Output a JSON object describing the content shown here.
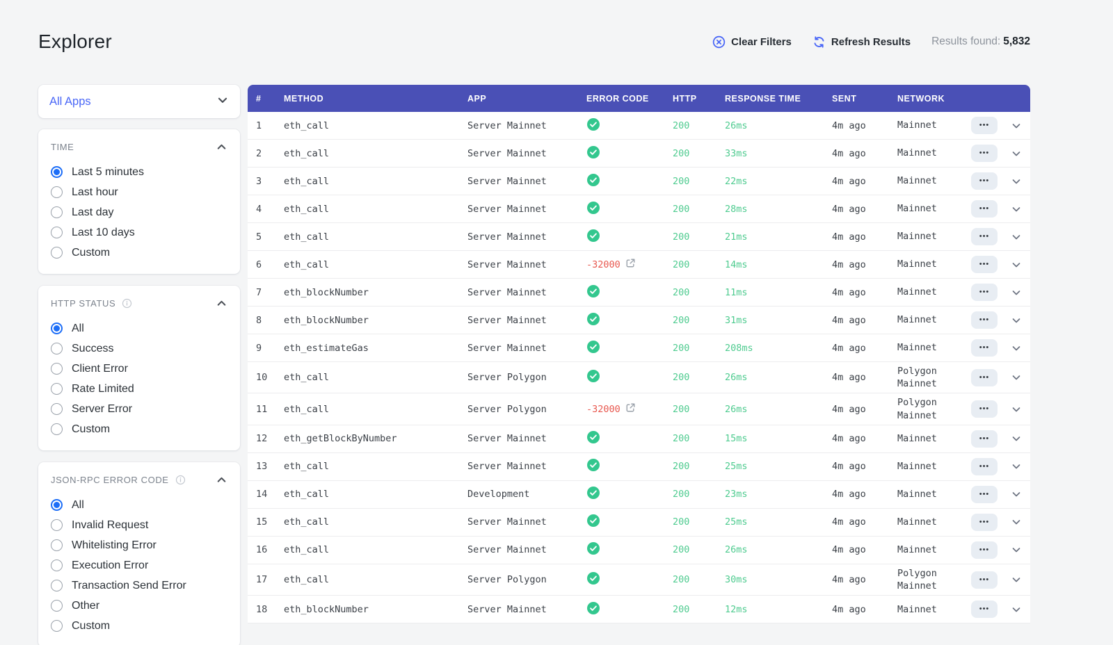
{
  "page_title": "Explorer",
  "toolbar": {
    "clear_filters": "Clear Filters",
    "refresh_results": "Refresh Results",
    "results_found_label": "Results found:",
    "results_found_value": "5,832"
  },
  "sidebar": {
    "app_filter": {
      "value": "All Apps"
    },
    "panels": [
      {
        "id": "time",
        "title": "TIME",
        "info": false,
        "options": [
          "Last 5 minutes",
          "Last hour",
          "Last day",
          "Last 10 days",
          "Custom"
        ],
        "selected": "Last 5 minutes"
      },
      {
        "id": "http-status",
        "title": "HTTP STATUS",
        "info": true,
        "options": [
          "All",
          "Success",
          "Client Error",
          "Rate Limited",
          "Server Error",
          "Custom"
        ],
        "selected": "All"
      },
      {
        "id": "json-rpc-error-code",
        "title": "JSON-RPC ERROR CODE",
        "info": true,
        "options": [
          "All",
          "Invalid Request",
          "Whitelisting Error",
          "Execution Error",
          "Transaction Send Error",
          "Other",
          "Custom"
        ],
        "selected": "All"
      }
    ]
  },
  "table": {
    "columns": [
      "#",
      "METHOD",
      "APP",
      "ERROR CODE",
      "HTTP",
      "RESPONSE TIME",
      "SENT",
      "NETWORK"
    ],
    "rows": [
      {
        "num": "1",
        "method": "eth_call",
        "app": "Server Mainnet",
        "error_code": "success",
        "http": "200",
        "response_time": "26ms",
        "sent": "4m ago",
        "network": "Mainnet"
      },
      {
        "num": "2",
        "method": "eth_call",
        "app": "Server Mainnet",
        "error_code": "success",
        "http": "200",
        "response_time": "33ms",
        "sent": "4m ago",
        "network": "Mainnet"
      },
      {
        "num": "3",
        "method": "eth_call",
        "app": "Server Mainnet",
        "error_code": "success",
        "http": "200",
        "response_time": "22ms",
        "sent": "4m ago",
        "network": "Mainnet"
      },
      {
        "num": "4",
        "method": "eth_call",
        "app": "Server Mainnet",
        "error_code": "success",
        "http": "200",
        "response_time": "28ms",
        "sent": "4m ago",
        "network": "Mainnet"
      },
      {
        "num": "5",
        "method": "eth_call",
        "app": "Server Mainnet",
        "error_code": "success",
        "http": "200",
        "response_time": "21ms",
        "sent": "4m ago",
        "network": "Mainnet"
      },
      {
        "num": "6",
        "method": "eth_call",
        "app": "Server Mainnet",
        "error_code": "-32000",
        "http": "200",
        "response_time": "14ms",
        "sent": "4m ago",
        "network": "Mainnet"
      },
      {
        "num": "7",
        "method": "eth_blockNumber",
        "app": "Server Mainnet",
        "error_code": "success",
        "http": "200",
        "response_time": "11ms",
        "sent": "4m ago",
        "network": "Mainnet"
      },
      {
        "num": "8",
        "method": "eth_blockNumber",
        "app": "Server Mainnet",
        "error_code": "success",
        "http": "200",
        "response_time": "31ms",
        "sent": "4m ago",
        "network": "Mainnet"
      },
      {
        "num": "9",
        "method": "eth_estimateGas",
        "app": "Server Mainnet",
        "error_code": "success",
        "http": "200",
        "response_time": "208ms",
        "sent": "4m ago",
        "network": "Mainnet"
      },
      {
        "num": "10",
        "method": "eth_call",
        "app": "Server Polygon",
        "error_code": "success",
        "http": "200",
        "response_time": "26ms",
        "sent": "4m ago",
        "network": "Polygon Mainnet"
      },
      {
        "num": "11",
        "method": "eth_call",
        "app": "Server Polygon",
        "error_code": "-32000",
        "http": "200",
        "response_time": "26ms",
        "sent": "4m ago",
        "network": "Polygon Mainnet"
      },
      {
        "num": "12",
        "method": "eth_getBlockByNumber",
        "app": "Server Mainnet",
        "error_code": "success",
        "http": "200",
        "response_time": "15ms",
        "sent": "4m ago",
        "network": "Mainnet"
      },
      {
        "num": "13",
        "method": "eth_call",
        "app": "Server Mainnet",
        "error_code": "success",
        "http": "200",
        "response_time": "25ms",
        "sent": "4m ago",
        "network": "Mainnet"
      },
      {
        "num": "14",
        "method": "eth_call",
        "app": "Development",
        "error_code": "success",
        "http": "200",
        "response_time": "23ms",
        "sent": "4m ago",
        "network": "Mainnet"
      },
      {
        "num": "15",
        "method": "eth_call",
        "app": "Server Mainnet",
        "error_code": "success",
        "http": "200",
        "response_time": "25ms",
        "sent": "4m ago",
        "network": "Mainnet"
      },
      {
        "num": "16",
        "method": "eth_call",
        "app": "Server Mainnet",
        "error_code": "success",
        "http": "200",
        "response_time": "26ms",
        "sent": "4m ago",
        "network": "Mainnet"
      },
      {
        "num": "17",
        "method": "eth_call",
        "app": "Server Polygon",
        "error_code": "success",
        "http": "200",
        "response_time": "30ms",
        "sent": "4m ago",
        "network": "Polygon Mainnet"
      },
      {
        "num": "18",
        "method": "eth_blockNumber",
        "app": "Server Mainnet",
        "error_code": "success",
        "http": "200",
        "response_time": "12ms",
        "sent": "4m ago",
        "network": "Mainnet"
      }
    ]
  },
  "colors": {
    "accent_blue": "#4a67f7",
    "radio_blue": "#1d6ef7",
    "table_header_indigo": "#4a50b6",
    "success_green": "#33c78e",
    "value_green": "#4ecb8f",
    "error_red": "#e8584f",
    "page_background": "#f4f5f6"
  }
}
